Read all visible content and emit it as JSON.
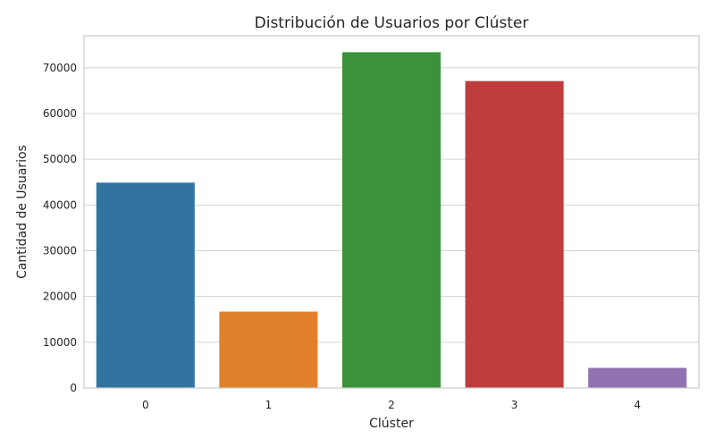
{
  "chart_data": {
    "type": "bar",
    "title": "Distribución de Usuarios por Clúster",
    "xlabel": "Clúster",
    "ylabel": "Cantidad de Usuarios",
    "categories": [
      "0",
      "1",
      "2",
      "3",
      "4"
    ],
    "values": [
      44900,
      16700,
      73400,
      67100,
      4400
    ],
    "colors": [
      "#3274a1",
      "#e1812c",
      "#3a923a",
      "#c03d3e",
      "#9372b2"
    ],
    "ylim": [
      0,
      77000
    ],
    "yticks": [
      0,
      10000,
      20000,
      30000,
      40000,
      50000,
      60000,
      70000
    ],
    "grid": true,
    "legend": "none"
  }
}
